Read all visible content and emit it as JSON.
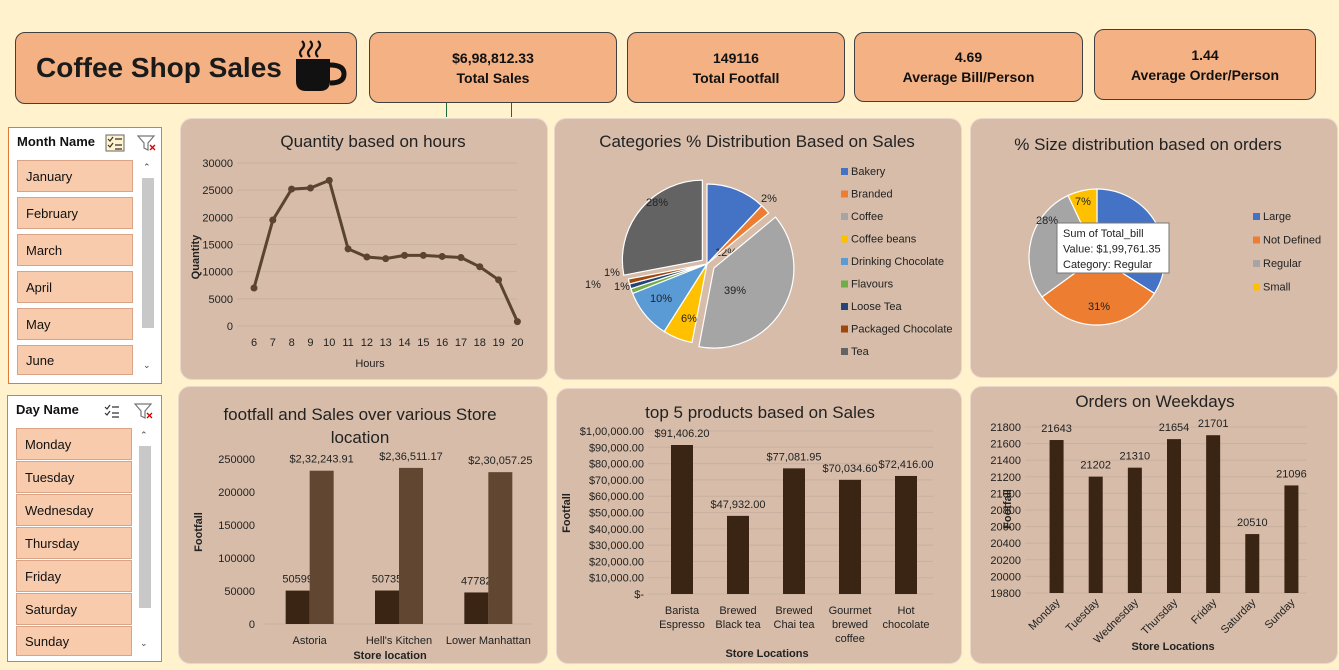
{
  "dashboard": {
    "title": "Coffee Shop Sales"
  },
  "kpis": [
    {
      "value": "$6,98,812.33",
      "label": "Total Sales"
    },
    {
      "value": "149116",
      "label": "Total Footfall"
    },
    {
      "value": "4.69",
      "label": "Average Bill/Person"
    },
    {
      "value": "1.44",
      "label": "Average Order/Person"
    }
  ],
  "month_slicer": {
    "header": "Month Name",
    "items": [
      "January",
      "February",
      "March",
      "April",
      "May",
      "June"
    ]
  },
  "day_slicer": {
    "header": "Day Name",
    "items": [
      "Monday",
      "Tuesday",
      "Wednesday",
      "Thursday",
      "Friday",
      "Saturday",
      "Sunday"
    ]
  },
  "icons": {
    "coffee": "coffee-cup-icon",
    "multiselect": "multi-select-icon",
    "clear_filter": "clear-filter-icon"
  },
  "colors": {
    "background": "#fff2cc",
    "kpi_fill": "#f4b183",
    "card_fill": "#d6bca9",
    "slicer_item": "#f8cbad",
    "line": "#5b4331",
    "bar_dark": "#3a2414",
    "bar_medium": "#614631"
  },
  "chart_data": [
    {
      "id": "hours",
      "type": "line",
      "title": "Quantity based on hours",
      "xlabel": "Hours",
      "ylabel": "Quantity",
      "x": [
        6,
        7,
        8,
        9,
        10,
        11,
        12,
        13,
        14,
        15,
        16,
        17,
        18,
        19,
        20
      ],
      "values": [
        7000,
        19500,
        25200,
        25400,
        26800,
        14200,
        12700,
        12400,
        13000,
        13000,
        12800,
        12600,
        10900,
        8500,
        800
      ],
      "yticks": [
        "0",
        "5000",
        "10000",
        "15000",
        "20000",
        "25000",
        "30000"
      ],
      "ylim": [
        0,
        30000
      ],
      "grid": true
    },
    {
      "id": "categories",
      "type": "pie",
      "title": "Categories % Distribution Based on Sales",
      "categories": [
        "Bakery",
        "Branded",
        "Coffee",
        "Coffee beans",
        "Drinking Chocolate",
        "Flavours",
        "Loose Tea",
        "Packaged Chocolate",
        "Tea"
      ],
      "values": [
        12,
        2,
        39,
        6,
        10,
        1,
        1,
        1,
        28
      ],
      "labels": [
        "12%",
        "2%",
        "39%",
        "6%",
        "10%",
        "1%",
        "1%",
        "1%",
        "28%"
      ],
      "colors": [
        "#4472c4",
        "#ed7d31",
        "#a5a5a5",
        "#ffc000",
        "#5b9bd5",
        "#70ad47",
        "#264478",
        "#9e480e",
        "#636363"
      ],
      "legend": "right"
    },
    {
      "id": "sizes",
      "type": "pie",
      "title": "% Size distribution based on orders",
      "categories": [
        "Large",
        "Not Defined",
        "Regular",
        "Small"
      ],
      "values": [
        34,
        31,
        28,
        7
      ],
      "labels": [
        "",
        "31%",
        "28%",
        "7%"
      ],
      "colors": [
        "#4472c4",
        "#ed7d31",
        "#a5a5a5",
        "#ffc000"
      ],
      "legend": "right",
      "tooltip": [
        "Sum of Total_bill",
        "Value: $1,99,761.35",
        "Category: Regular"
      ]
    },
    {
      "id": "stores",
      "type": "bar",
      "title": "footfall and Sales over various Store location",
      "xlabel": "Store location",
      "ylabel": "Footfall",
      "categories": [
        "Astoria",
        "Hell's Kitchen",
        "Lower Manhattan"
      ],
      "series": [
        {
          "values": [
            50599,
            50735,
            47782
          ],
          "labels": [
            "50599",
            "50735",
            "47782"
          ]
        },
        {
          "values": [
            232243.91,
            236511.17,
            230057.25
          ],
          "labels": [
            "$2,32,243.91",
            "$2,36,511.17",
            "$2,30,057.25"
          ]
        }
      ],
      "yticks": [
        "0",
        "50000",
        "100000",
        "150000",
        "200000",
        "250000"
      ],
      "ylim": [
        0,
        250000
      ]
    },
    {
      "id": "products",
      "type": "bar",
      "title": "top 5 products based on Sales",
      "xlabel": "Store Locations",
      "ylabel": "Footfall",
      "categories": [
        [
          "Barista",
          "Espresso"
        ],
        [
          "Brewed",
          "Black tea"
        ],
        [
          "Brewed",
          "Chai tea"
        ],
        [
          "Gourmet",
          "brewed",
          "coffee"
        ],
        [
          "Hot",
          "chocolate"
        ]
      ],
      "values": [
        91406.2,
        47932.0,
        77081.95,
        70034.6,
        72416.0
      ],
      "labels": [
        "$91,406.20",
        "$47,932.00",
        "$77,081.95",
        "$70,034.60",
        "$72,416.00"
      ],
      "yticks": [
        "$-",
        "$10,000.00",
        "$20,000.00",
        "$30,000.00",
        "$40,000.00",
        "$50,000.00",
        "$60,000.00",
        "$70,000.00",
        "$80,000.00",
        "$90,000.00",
        "$1,00,000.00"
      ],
      "ylim": [
        0,
        100000
      ]
    },
    {
      "id": "weekdays",
      "type": "bar",
      "title": "Orders on Weekdays",
      "xlabel": "Store Locations",
      "ylabel": "Footfall",
      "categories": [
        "Monday",
        "Tuesday",
        "Wednesday",
        "Thursday",
        "Friday",
        "Saturday",
        "Sunday"
      ],
      "values": [
        21643,
        21202,
        21310,
        21654,
        21701,
        20510,
        21096
      ],
      "labels": [
        "21643",
        "21202",
        "21310",
        "21654",
        "21701",
        "20510",
        "21096"
      ],
      "yticks": [
        "19800",
        "20000",
        "20200",
        "20400",
        "20600",
        "20800",
        "21000",
        "21200",
        "21400",
        "21600",
        "21800"
      ],
      "ylim": [
        19800,
        21800
      ]
    }
  ]
}
